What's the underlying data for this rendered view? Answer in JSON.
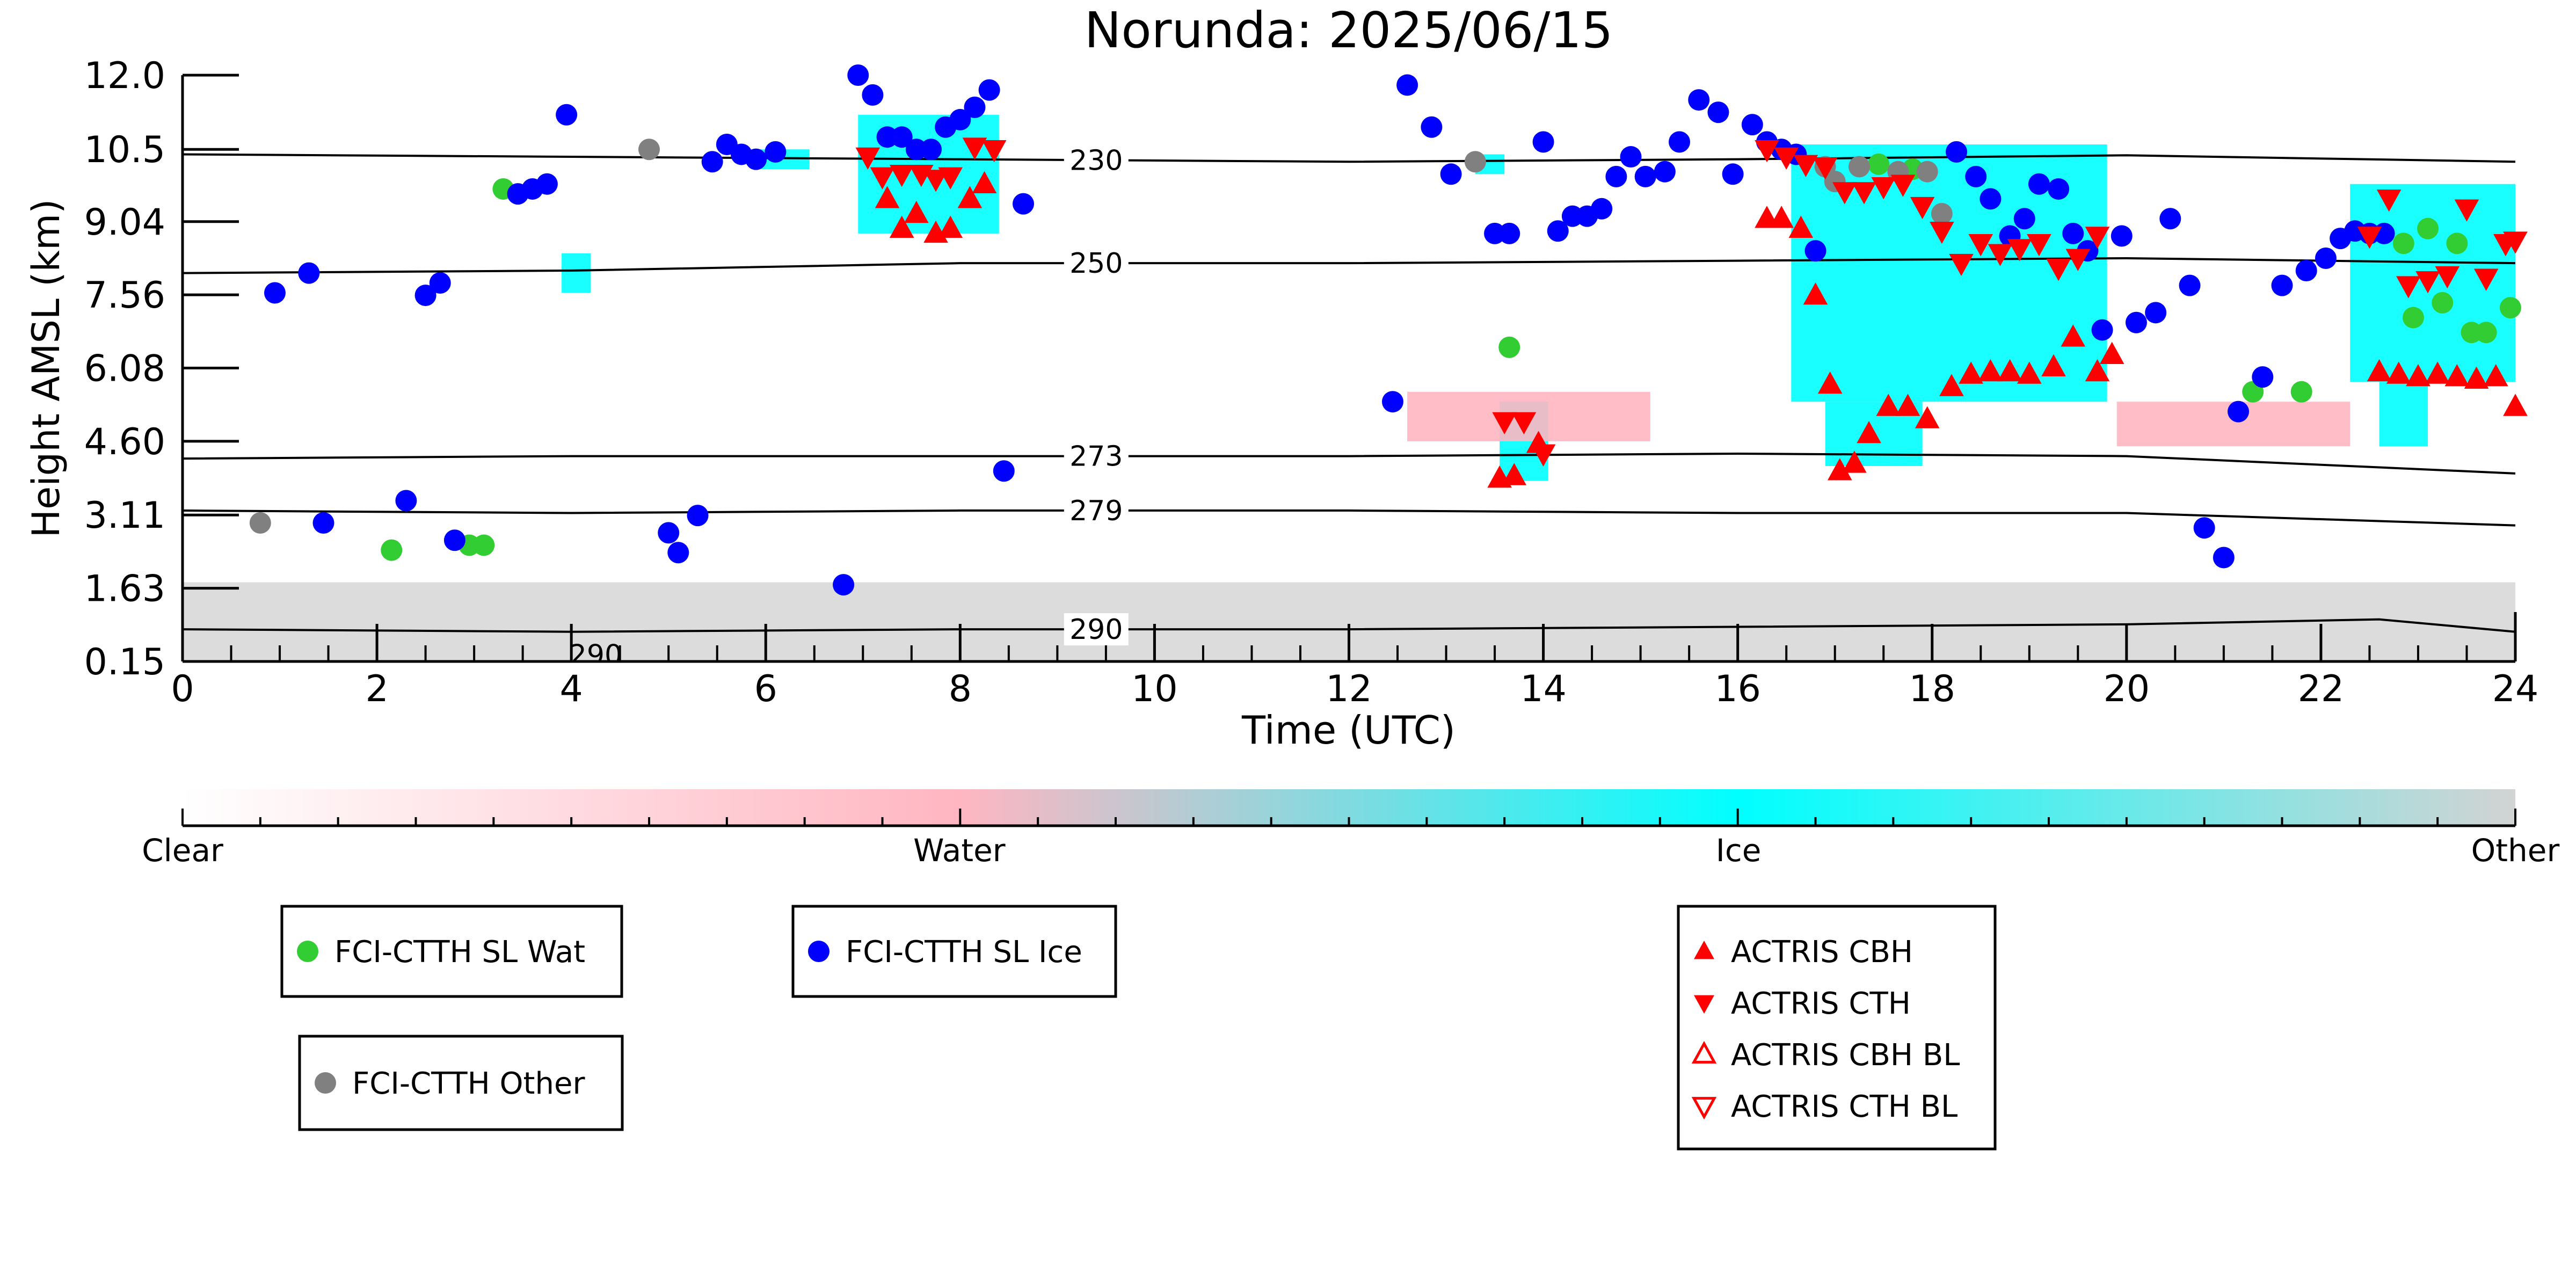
{
  "chart_data": {
    "type": "scatter",
    "title": "Norunda: 2025/06/15",
    "xlabel": "Time (UTC)",
    "ylabel": "Height AMSL (km)",
    "xlim": [
      0,
      24
    ],
    "ylim": [
      0.15,
      12.0
    ],
    "x_ticks": [
      0,
      2,
      4,
      6,
      8,
      10,
      12,
      14,
      16,
      18,
      20,
      22,
      24
    ],
    "y_ticks": [
      "0.15",
      "1.63",
      "3.11",
      "4.60",
      "6.08",
      "7.56",
      "9.04",
      "10.5",
      "12.0"
    ],
    "y_tick_values": [
      0.15,
      1.63,
      3.11,
      4.6,
      6.08,
      7.56,
      9.04,
      10.5,
      12.0
    ],
    "grid": false,
    "colors": {
      "water": "#32cd32",
      "ice": "#0000ff",
      "other": "#808080",
      "actris": "#ff0000",
      "cloud_ice": "#00ffff",
      "cloud_water": "#ffb6c1",
      "cloud_other": "#d3d3d3"
    },
    "isotherms": [
      {
        "label": "230",
        "label_x": 9.4,
        "x": [
          0,
          4,
          8,
          12,
          16,
          20,
          24
        ],
        "y": [
          10.4,
          10.35,
          10.3,
          10.25,
          10.3,
          10.38,
          10.25
        ]
      },
      {
        "label": "250",
        "label_x": 9.4,
        "x": [
          0,
          4,
          8,
          12,
          16,
          20,
          24
        ],
        "y": [
          8.0,
          8.05,
          8.2,
          8.2,
          8.25,
          8.3,
          8.2
        ]
      },
      {
        "label": "273",
        "label_x": 9.4,
        "x": [
          0,
          4,
          8,
          12,
          16,
          20,
          24
        ],
        "y": [
          4.25,
          4.3,
          4.3,
          4.3,
          4.35,
          4.3,
          3.95
        ]
      },
      {
        "label": "279",
        "label_x": 9.4,
        "x": [
          0,
          4,
          8,
          12,
          16,
          20,
          24
        ],
        "y": [
          3.2,
          3.15,
          3.2,
          3.2,
          3.15,
          3.15,
          2.9
        ]
      },
      {
        "label": "290",
        "label_x": 9.4,
        "x": [
          0,
          4,
          8,
          12,
          16,
          20,
          22.6,
          24
        ],
        "y": [
          0.8,
          0.75,
          0.8,
          0.8,
          0.85,
          0.9,
          1.0,
          0.75
        ]
      }
    ],
    "isotherm_extra_label": {
      "label": "290",
      "x": 4.25,
      "y": 0.2
    },
    "cloud_regions": [
      {
        "class": "ice",
        "x0": 6.95,
        "x1": 8.4,
        "y0": 8.8,
        "y1": 11.2
      },
      {
        "class": "ice",
        "x0": 5.9,
        "x1": 6.45,
        "y0": 10.1,
        "y1": 10.5
      },
      {
        "class": "ice",
        "x0": 3.9,
        "x1": 4.2,
        "y0": 7.6,
        "y1": 8.4
      },
      {
        "class": "ice",
        "x0": 13.3,
        "x1": 13.6,
        "y0": 10.0,
        "y1": 10.4
      },
      {
        "class": "ice",
        "x0": 13.55,
        "x1": 14.05,
        "y0": 3.8,
        "y1": 5.4
      },
      {
        "class": "ice",
        "x0": 16.55,
        "x1": 19.8,
        "y0": 5.4,
        "y1": 10.6
      },
      {
        "class": "ice",
        "x0": 16.9,
        "x1": 17.9,
        "y0": 4.1,
        "y1": 5.4
      },
      {
        "class": "ice",
        "x0": 22.3,
        "x1": 24.0,
        "y0": 5.8,
        "y1": 9.8
      },
      {
        "class": "ice",
        "x0": 22.6,
        "x1": 23.1,
        "y0": 4.5,
        "y1": 5.8
      },
      {
        "class": "water",
        "x0": 12.6,
        "x1": 15.1,
        "y0": 4.6,
        "y1": 5.6
      },
      {
        "class": "water",
        "x0": 19.9,
        "x1": 22.3,
        "y0": 4.5,
        "y1": 5.4
      },
      {
        "class": "other",
        "x0": 0,
        "x1": 24,
        "y0": 0.15,
        "y1": 1.75
      }
    ],
    "series": [
      {
        "name": "FCI-CTTH SL Wat",
        "marker": "circle",
        "x": [
          2.15,
          2.95,
          3.1,
          3.3,
          13.65,
          17.45,
          17.8,
          21.3,
          21.8,
          22.85,
          22.95,
          23.1,
          23.25,
          23.4,
          23.55,
          23.7,
          23.95
        ],
        "y": [
          2.4,
          2.5,
          2.5,
          9.7,
          6.5,
          10.2,
          10.1,
          5.6,
          5.6,
          8.6,
          7.1,
          8.9,
          7.4,
          8.6,
          6.8,
          6.8,
          7.3
        ]
      },
      {
        "name": "FCI-CTTH SL Ice",
        "marker": "circle",
        "x": [
          0.95,
          1.3,
          1.45,
          2.3,
          2.5,
          2.65,
          2.8,
          3.45,
          3.6,
          3.75,
          3.95,
          5.0,
          5.1,
          5.3,
          5.45,
          5.6,
          5.75,
          5.9,
          6.1,
          6.8,
          6.95,
          7.1,
          7.25,
          7.4,
          7.55,
          7.7,
          7.85,
          8.0,
          8.15,
          8.3,
          8.45,
          8.65,
          12.45,
          12.6,
          12.85,
          13.05,
          13.5,
          13.65,
          14.0,
          14.15,
          14.3,
          14.45,
          14.6,
          14.75,
          14.9,
          15.05,
          15.25,
          15.4,
          15.6,
          15.8,
          15.95,
          16.15,
          16.3,
          16.45,
          16.6,
          16.8,
          18.25,
          18.45,
          18.6,
          18.8,
          18.95,
          19.1,
          19.3,
          19.45,
          19.6,
          19.75,
          19.95,
          20.1,
          20.3,
          20.45,
          20.65,
          20.8,
          21.0,
          21.15,
          21.4,
          21.6,
          21.85,
          22.05,
          22.2,
          22.35,
          22.5,
          22.65
        ],
        "y": [
          7.6,
          8.0,
          2.95,
          3.4,
          7.55,
          7.8,
          2.6,
          9.6,
          9.7,
          9.8,
          11.2,
          2.75,
          2.35,
          3.1,
          10.25,
          10.6,
          10.4,
          10.3,
          10.45,
          1.7,
          12.0,
          11.6,
          10.75,
          10.75,
          10.5,
          10.5,
          10.95,
          11.1,
          11.35,
          11.7,
          4.0,
          9.4,
          5.4,
          11.8,
          10.95,
          10.0,
          8.8,
          8.8,
          10.65,
          8.85,
          9.15,
          9.15,
          9.3,
          9.95,
          10.35,
          9.95,
          10.05,
          10.65,
          11.5,
          11.25,
          10.0,
          11.0,
          10.65,
          10.5,
          10.4,
          8.45,
          10.45,
          9.95,
          9.5,
          8.75,
          9.1,
          9.8,
          9.7,
          8.8,
          8.45,
          6.85,
          8.75,
          7.0,
          7.2,
          9.1,
          7.75,
          2.85,
          2.25,
          5.2,
          5.9,
          7.75,
          8.05,
          8.3,
          8.7,
          8.85,
          8.8,
          8.8
        ],
        "omit_note": ""
      },
      {
        "name": "FCI-CTTH Other",
        "marker": "circle",
        "x": [
          0.8,
          4.8,
          13.3,
          16.9,
          17.0,
          17.25,
          17.65,
          17.95,
          18.1
        ],
        "y": [
          2.95,
          10.5,
          10.25,
          10.15,
          9.85,
          10.15,
          10.05,
          10.05,
          9.2
        ]
      },
      {
        "name": "ACTRIS CBH",
        "marker": "triangle-up",
        "x": [
          7.25,
          7.4,
          7.55,
          7.75,
          7.9,
          8.1,
          8.25,
          13.55,
          13.7,
          13.95,
          16.3,
          16.45,
          16.65,
          16.8,
          16.95,
          17.05,
          17.2,
          17.35,
          17.55,
          17.75,
          17.95,
          18.2,
          18.4,
          18.6,
          18.8,
          19.0,
          19.25,
          19.45,
          19.7,
          19.85,
          22.6,
          22.8,
          23.0,
          23.2,
          23.4,
          23.6,
          23.8,
          24.0
        ],
        "y": [
          9.5,
          8.9,
          9.2,
          8.8,
          8.9,
          9.5,
          9.8,
          3.85,
          3.9,
          4.55,
          9.1,
          9.1,
          8.9,
          7.55,
          5.75,
          4.0,
          4.15,
          4.75,
          5.3,
          5.3,
          5.05,
          5.7,
          5.95,
          6.0,
          6.0,
          5.95,
          6.1,
          6.7,
          6.0,
          6.35,
          6.0,
          5.95,
          5.9,
          5.95,
          5.9,
          5.85,
          5.9,
          5.3
        ],
        "omit_note": ""
      },
      {
        "name": "ACTRIS CTH",
        "marker": "triangle-down",
        "x": [
          7.05,
          7.2,
          7.4,
          7.6,
          7.75,
          7.9,
          8.15,
          8.35,
          13.6,
          13.8,
          14.0,
          16.3,
          16.5,
          16.7,
          16.9,
          17.1,
          17.3,
          17.5,
          17.7,
          17.9,
          18.1,
          18.3,
          18.5,
          18.7,
          18.9,
          19.1,
          19.3,
          19.5,
          19.7,
          22.5,
          22.7,
          22.9,
          23.1,
          23.3,
          23.5,
          23.7,
          23.9,
          24.0
        ],
        "y": [
          10.35,
          9.95,
          10.0,
          10.0,
          9.9,
          9.95,
          10.55,
          10.5,
          5.0,
          5.0,
          4.35,
          10.5,
          10.35,
          10.2,
          10.15,
          9.65,
          9.65,
          9.75,
          9.8,
          9.35,
          8.85,
          8.2,
          8.6,
          8.4,
          8.5,
          8.6,
          8.1,
          8.3,
          8.75,
          8.75,
          9.5,
          7.75,
          7.85,
          7.95,
          9.3,
          7.9,
          8.6,
          8.65
        ]
      },
      {
        "name": "ACTRIS CBH BL",
        "marker": "triangle-up-open",
        "x": [],
        "y": []
      },
      {
        "name": "ACTRIS CTH BL",
        "marker": "triangle-down-open",
        "x": [],
        "y": []
      }
    ],
    "colorbar": {
      "labels": [
        "Clear",
        "Water",
        "Ice",
        "Other"
      ],
      "stops": [
        "#ffffff",
        "#ffb6c1",
        "#00ffff",
        "#d3d3d3"
      ]
    },
    "legends": [
      {
        "entries": [
          "FCI-CTTH SL Wat"
        ],
        "markers": [
          "circle"
        ],
        "colors": [
          "#32cd32"
        ]
      },
      {
        "entries": [
          "FCI-CTTH SL Ice"
        ],
        "markers": [
          "circle"
        ],
        "colors": [
          "#0000ff"
        ]
      },
      {
        "entries": [
          "FCI-CTTH Other"
        ],
        "markers": [
          "circle"
        ],
        "colors": [
          "#808080"
        ]
      },
      {
        "entries": [
          "ACTRIS CBH",
          "ACTRIS CTH",
          "ACTRIS CBH BL",
          "ACTRIS CTH BL"
        ],
        "markers": [
          "triangle-up",
          "triangle-down",
          "triangle-up-open",
          "triangle-down-open"
        ],
        "colors": [
          "#ff0000",
          "#ff0000",
          "#ff0000",
          "#ff0000"
        ]
      }
    ]
  }
}
